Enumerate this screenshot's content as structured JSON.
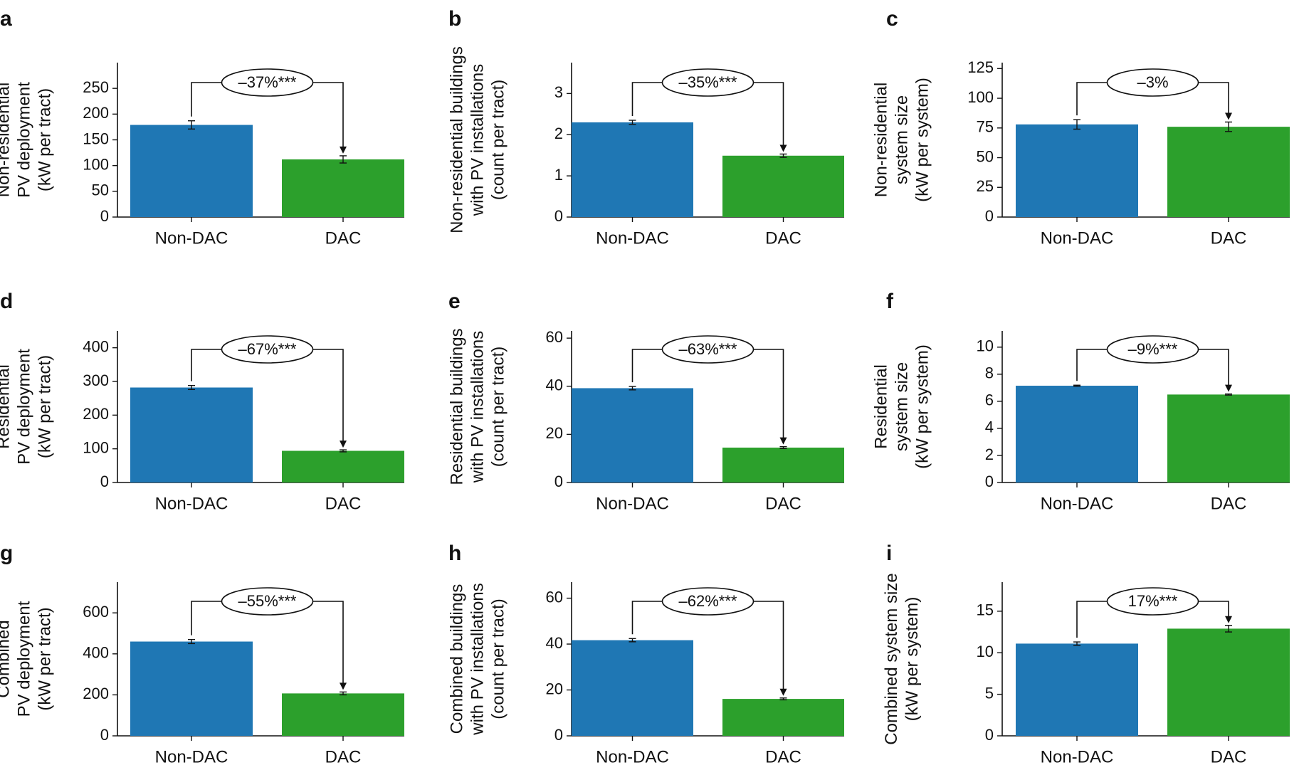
{
  "colors": {
    "non_dac": "#1f77b4",
    "dac": "#2ca02c",
    "axis": "#111111"
  },
  "chart_data": [
    {
      "panel": "a",
      "type": "bar",
      "categories": [
        "Non-DAC",
        "DAC"
      ],
      "values": [
        179,
        112
      ],
      "errors": [
        8,
        7
      ],
      "ylabel": [
        "Non-residential",
        "PV deployment",
        "(kW per tract)"
      ],
      "yticks": [
        0,
        50,
        100,
        150,
        200,
        250
      ],
      "ylim": [
        0,
        300
      ],
      "annotation": "–37%***",
      "annotation_target": "DAC"
    },
    {
      "panel": "b",
      "type": "bar",
      "categories": [
        "Non-DAC",
        "DAC"
      ],
      "values": [
        2.3,
        1.49
      ],
      "errors": [
        0.05,
        0.04
      ],
      "ylabel": [
        "Non-residential buildings",
        "with PV installations",
        "(count per tract)"
      ],
      "yticks": [
        0,
        1,
        2,
        3
      ],
      "ylim": [
        0,
        3.75
      ],
      "annotation": "–35%***",
      "annotation_target": "DAC"
    },
    {
      "panel": "c",
      "type": "bar",
      "categories": [
        "Non-DAC",
        "DAC"
      ],
      "values": [
        78,
        76
      ],
      "errors": [
        4,
        4
      ],
      "ylabel": [
        "Non-residential",
        "system size",
        "(kW per system)"
      ],
      "yticks": [
        0,
        25,
        50,
        75,
        100,
        125
      ],
      "ylim": [
        0,
        130
      ],
      "annotation": "–3%",
      "annotation_target": "DAC"
    },
    {
      "panel": "d",
      "type": "bar",
      "categories": [
        "Non-DAC",
        "DAC"
      ],
      "values": [
        282,
        94
      ],
      "errors": [
        6,
        3
      ],
      "ylabel": [
        "Residential",
        "PV deployment",
        "(kW per tract)"
      ],
      "yticks": [
        0,
        100,
        200,
        300,
        400
      ],
      "ylim": [
        0,
        450
      ],
      "annotation": "–67%***",
      "annotation_target": "DAC"
    },
    {
      "panel": "e",
      "type": "bar",
      "categories": [
        "Non-DAC",
        "DAC"
      ],
      "values": [
        39.2,
        14.5
      ],
      "errors": [
        0.7,
        0.4
      ],
      "ylabel": [
        "Residential buildings",
        "with PV installations",
        "(count per tract)"
      ],
      "yticks": [
        0,
        20,
        40,
        60
      ],
      "ylim": [
        0,
        63
      ],
      "annotation": "–63%***",
      "annotation_target": "DAC"
    },
    {
      "panel": "f",
      "type": "bar",
      "categories": [
        "Non-DAC",
        "DAC"
      ],
      "values": [
        7.15,
        6.5
      ],
      "errors": [
        0.04,
        0.04
      ],
      "ylabel": [
        "Residential",
        "system size",
        "(kW per system)"
      ],
      "yticks": [
        0,
        2,
        4,
        6,
        8,
        10
      ],
      "ylim": [
        0,
        11.2
      ],
      "annotation": "–9%***",
      "annotation_target": "DAC"
    },
    {
      "panel": "g",
      "type": "bar",
      "categories": [
        "Non-DAC",
        "DAC"
      ],
      "values": [
        460,
        207
      ],
      "errors": [
        10,
        7
      ],
      "ylabel": [
        "Combined",
        "PV deployment",
        "(kW per tract)"
      ],
      "yticks": [
        0,
        200,
        400,
        600
      ],
      "ylim": [
        0,
        750
      ],
      "annotation": "–55%***",
      "annotation_target": "DAC"
    },
    {
      "panel": "h",
      "type": "bar",
      "categories": [
        "Non-DAC",
        "DAC"
      ],
      "values": [
        41.7,
        16.1
      ],
      "errors": [
        0.7,
        0.4
      ],
      "ylabel": [
        "Combined buildings",
        "with PV installations",
        "(count per tract)"
      ],
      "yticks": [
        0,
        20,
        40,
        60
      ],
      "ylim": [
        0,
        67
      ],
      "annotation": "–62%***",
      "annotation_target": "DAC"
    },
    {
      "panel": "i",
      "type": "bar",
      "categories": [
        "Non-DAC",
        "DAC"
      ],
      "values": [
        11.1,
        12.9
      ],
      "errors": [
        0.2,
        0.4
      ],
      "ylabel": [
        "Combined system size",
        "(kW per system)"
      ],
      "yticks": [
        0,
        5,
        10,
        15
      ],
      "ylim": [
        0,
        18.5
      ],
      "annotation": "17%***",
      "annotation_target": "DAC"
    }
  ]
}
